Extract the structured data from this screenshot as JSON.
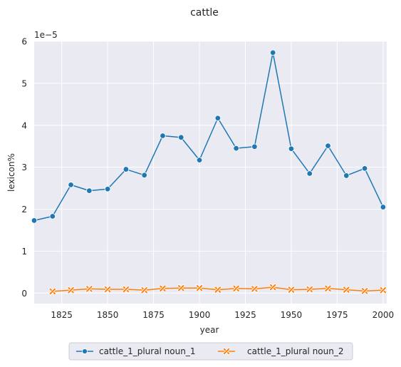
{
  "chart_data": {
    "type": "line",
    "title": "cattle",
    "xlabel": "year",
    "ylabel": "lexicon%",
    "y_scale_label": "1e−5",
    "xlim": [
      1810,
      2002
    ],
    "ylim": [
      -0.25,
      6.0
    ],
    "xticks": [
      1825,
      1850,
      1875,
      1900,
      1925,
      1950,
      1975,
      2000
    ],
    "yticks": [
      0,
      1,
      2,
      3,
      4,
      5,
      6
    ],
    "grid": true,
    "legend_position": "bottom-center",
    "series": [
      {
        "name": "cattle_1_plural noun_1",
        "color": "#1f77b4",
        "marker": "circle",
        "x": [
          1810,
          1820,
          1830,
          1840,
          1850,
          1860,
          1870,
          1880,
          1890,
          1900,
          1910,
          1920,
          1930,
          1940,
          1950,
          1960,
          1970,
          1980,
          1990,
          2000
        ],
        "y": [
          1.73,
          1.83,
          2.58,
          2.44,
          2.48,
          2.95,
          2.81,
          3.75,
          3.71,
          3.17,
          4.17,
          3.45,
          3.49,
          5.73,
          3.44,
          2.85,
          3.51,
          2.8,
          2.97,
          2.05
        ]
      },
      {
        "name": "cattle_1_plural noun_2",
        "color": "#ff7f0e",
        "marker": "x",
        "x": [
          1820,
          1830,
          1840,
          1850,
          1860,
          1870,
          1880,
          1890,
          1900,
          1910,
          1920,
          1930,
          1940,
          1950,
          1960,
          1970,
          1980,
          1990,
          2000
        ],
        "y": [
          0.04,
          0.07,
          0.1,
          0.09,
          0.09,
          0.07,
          0.11,
          0.12,
          0.12,
          0.08,
          0.11,
          0.1,
          0.14,
          0.08,
          0.09,
          0.11,
          0.08,
          0.05,
          0.07
        ]
      }
    ]
  }
}
